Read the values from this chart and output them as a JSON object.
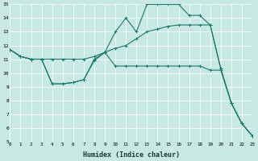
{
  "xlabel": "Humidex (Indice chaleur)",
  "xlim": [
    0,
    23
  ],
  "ylim": [
    5,
    15
  ],
  "background_color": "#c8e8e4",
  "grid_color": "#ffffff",
  "line_color": "#1a7a6e",
  "line1_x": [
    0,
    1,
    2,
    3,
    4,
    5,
    6,
    7,
    8,
    9,
    10,
    11,
    12,
    13,
    14,
    15,
    16,
    17,
    18,
    19,
    20,
    21,
    22,
    23
  ],
  "line1_y": [
    11.7,
    11.2,
    11.0,
    11.0,
    9.2,
    9.2,
    9.3,
    9.5,
    10.9,
    11.5,
    10.5,
    10.5,
    10.5,
    10.5,
    10.5,
    10.5,
    10.5,
    10.5,
    10.5,
    10.2,
    10.2,
    7.8,
    6.3,
    5.4
  ],
  "line2_x": [
    0,
    1,
    2,
    3,
    4,
    5,
    6,
    7,
    8,
    9,
    10,
    11,
    12,
    13,
    14,
    15,
    16,
    17,
    18,
    19,
    20,
    21,
    22,
    23
  ],
  "line2_y": [
    11.7,
    11.2,
    11.0,
    11.0,
    9.2,
    9.2,
    9.3,
    9.5,
    11.0,
    11.5,
    13.0,
    14.0,
    13.0,
    15.0,
    15.0,
    15.0,
    15.0,
    14.2,
    14.2,
    13.5,
    10.3,
    7.8,
    6.3,
    5.4
  ],
  "line3_x": [
    0,
    1,
    2,
    3,
    4,
    5,
    6,
    7,
    8,
    9,
    10,
    11,
    12,
    13,
    14,
    15,
    16,
    17,
    18,
    19,
    20,
    21,
    22,
    23
  ],
  "line3_y": [
    11.7,
    11.2,
    11.0,
    11.0,
    11.0,
    11.0,
    11.0,
    11.0,
    11.2,
    11.5,
    11.8,
    12.0,
    12.5,
    13.0,
    13.2,
    13.4,
    13.5,
    13.5,
    13.5,
    13.5,
    10.3,
    7.8,
    6.3,
    5.4
  ]
}
